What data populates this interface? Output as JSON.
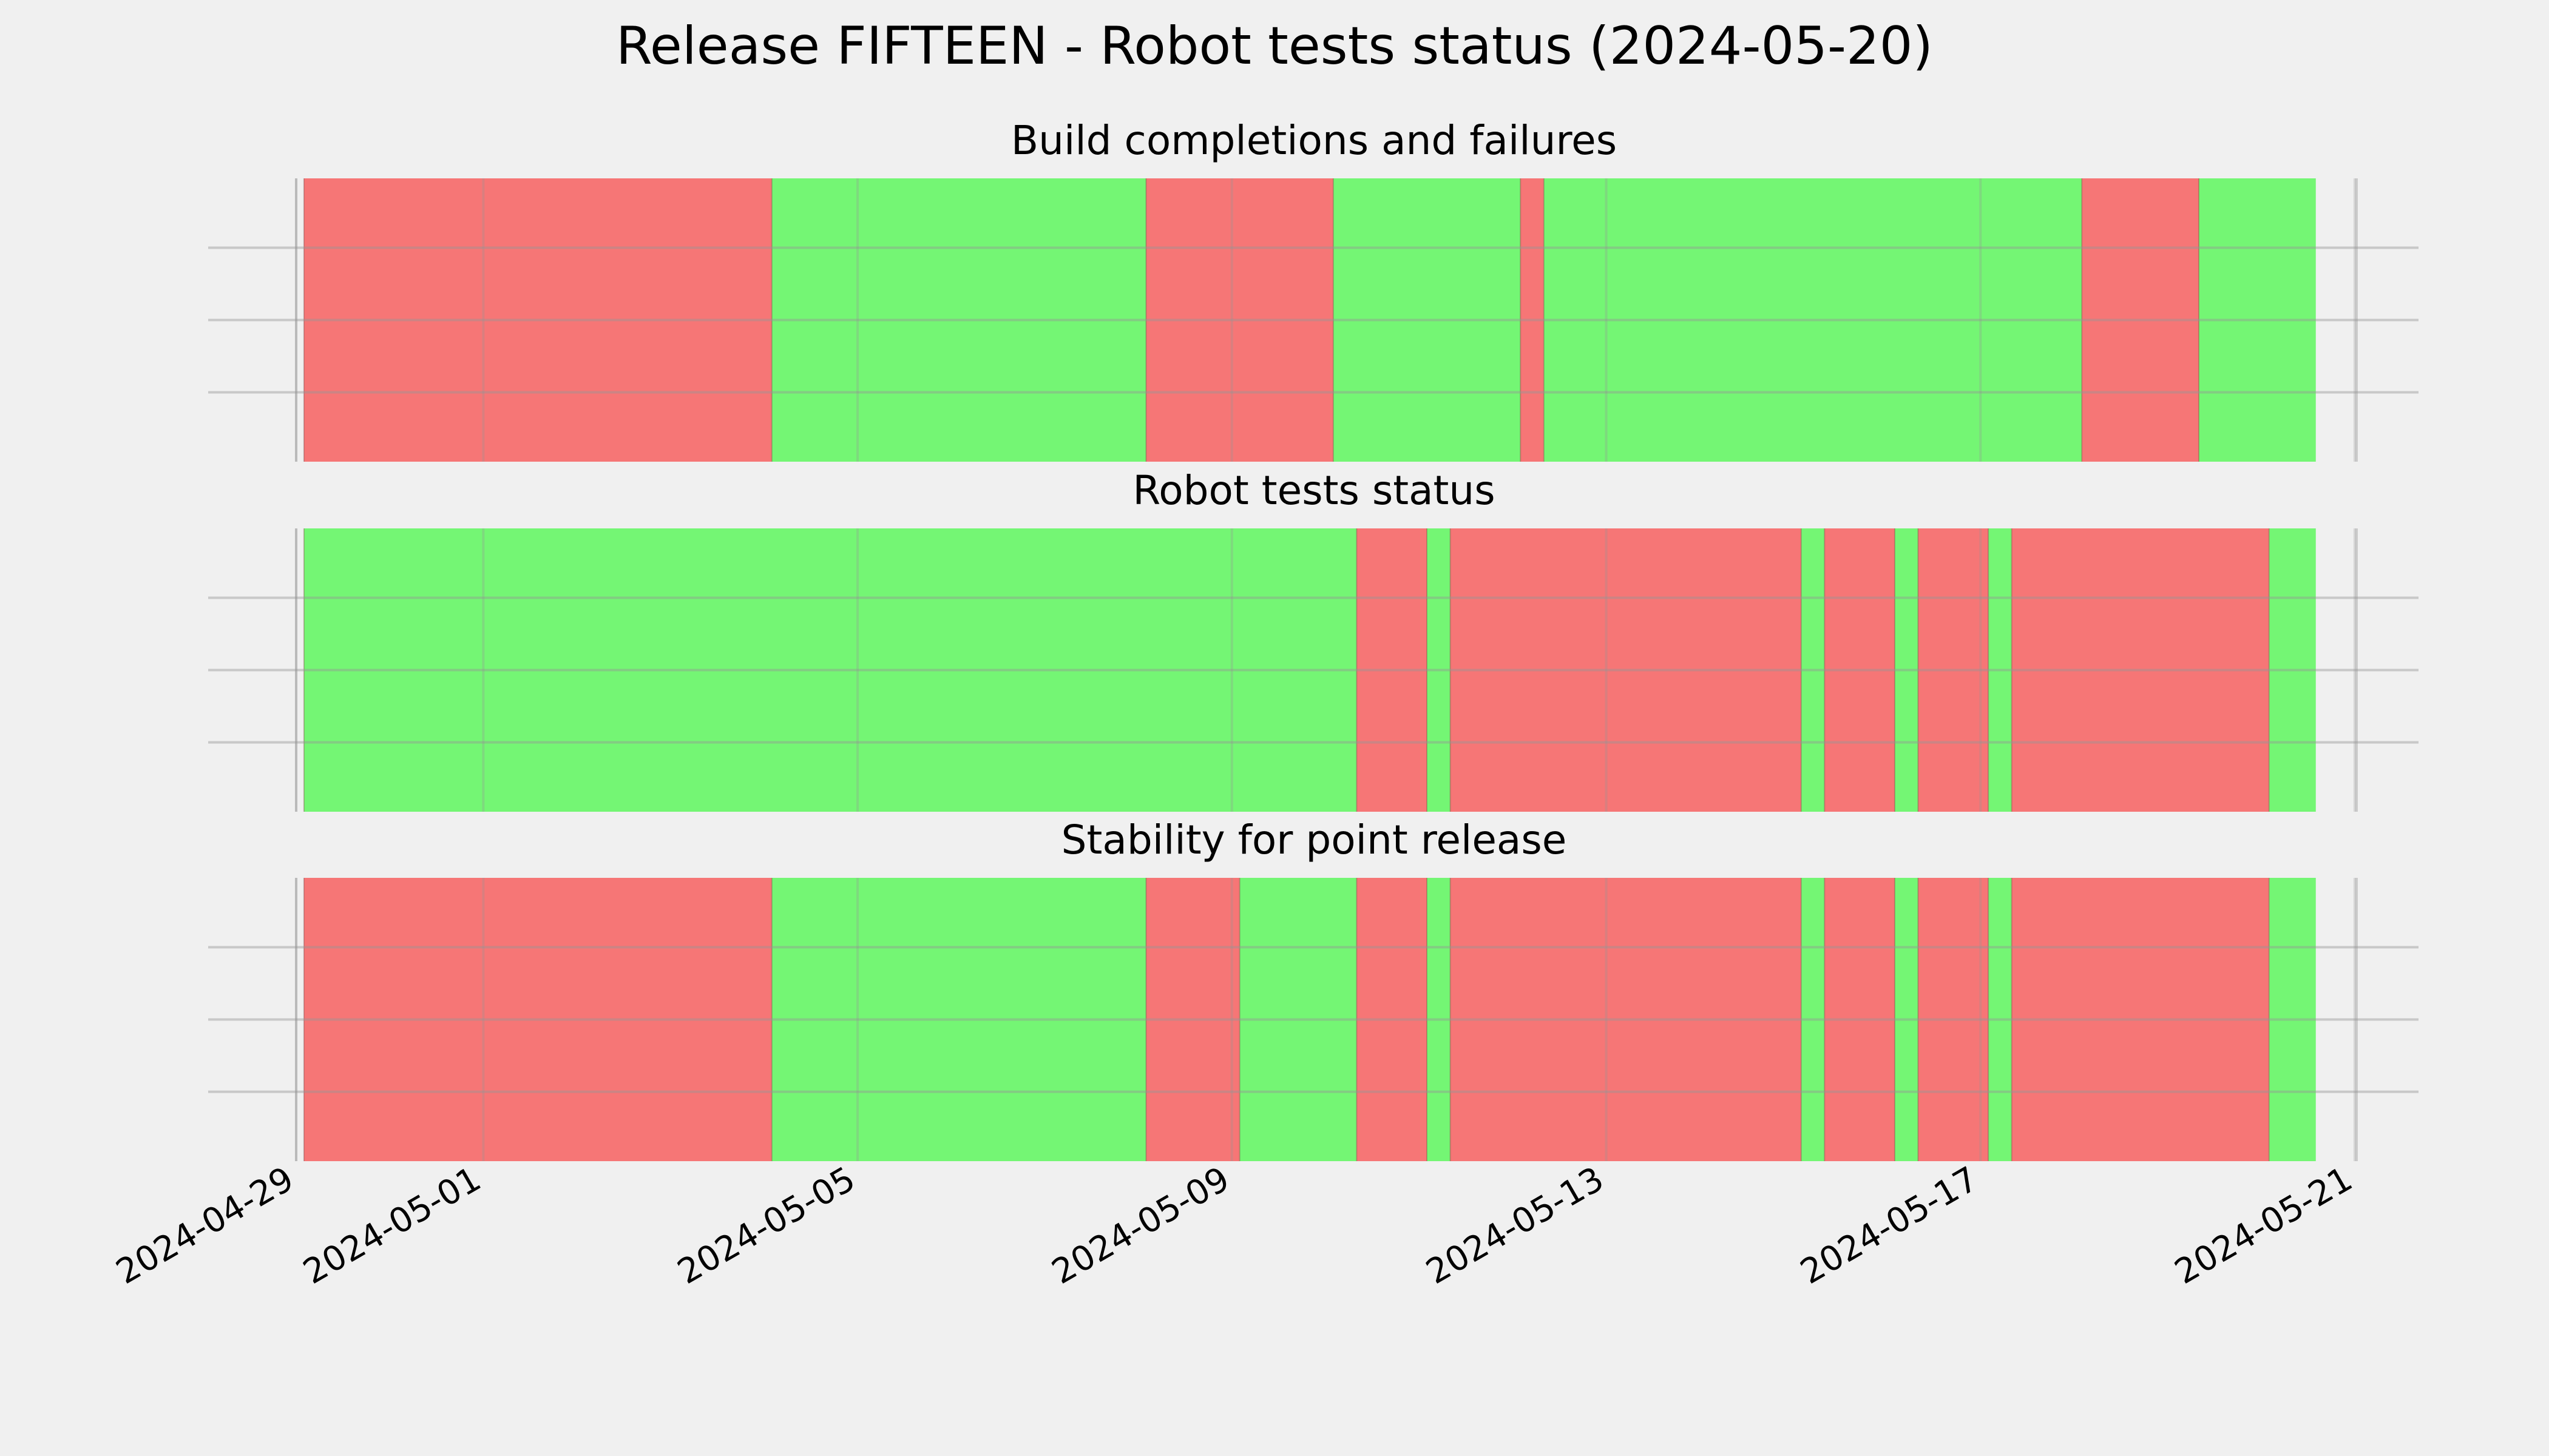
{
  "chart_data": {
    "type": "timeline",
    "title": "Release FIFTEEN - Robot tests status (2024-05-20)",
    "xlim": [
      "2024-04-29T00:00",
      "2024-05-21T00:00"
    ],
    "x_ticks": [
      "2024-04-29",
      "2024-05-01",
      "2024-05-05",
      "2024-05-09",
      "2024-05-13",
      "2024-05-17",
      "2024-05-21"
    ],
    "colors": {
      "pass": "#74f674",
      "fail": "#f67676",
      "background": "#f0f0f0",
      "grid": "#cbcbcb"
    },
    "panels": [
      {
        "title": "Build completions and failures",
        "segments": [
          {
            "start": "2024-04-29T02:00",
            "end": "2024-05-04T02:00",
            "status": "fail"
          },
          {
            "start": "2024-05-04T02:00",
            "end": "2024-05-08T02:00",
            "status": "pass"
          },
          {
            "start": "2024-05-08T02:00",
            "end": "2024-05-10T02:00",
            "status": "fail"
          },
          {
            "start": "2024-05-10T02:00",
            "end": "2024-05-12T02:00",
            "status": "pass"
          },
          {
            "start": "2024-05-12T02:00",
            "end": "2024-05-12T08:00",
            "status": "fail"
          },
          {
            "start": "2024-05-12T08:00",
            "end": "2024-05-18T02:00",
            "status": "pass"
          },
          {
            "start": "2024-05-18T02:00",
            "end": "2024-05-19T08:00",
            "status": "fail"
          },
          {
            "start": "2024-05-19T08:00",
            "end": "2024-05-20T14:00",
            "status": "pass"
          }
        ]
      },
      {
        "title": "Robot tests status",
        "segments": [
          {
            "start": "2024-04-29T02:00",
            "end": "2024-05-10T08:00",
            "status": "pass"
          },
          {
            "start": "2024-05-10T08:00",
            "end": "2024-05-11T02:00",
            "status": "fail"
          },
          {
            "start": "2024-05-11T02:00",
            "end": "2024-05-11T08:00",
            "status": "pass"
          },
          {
            "start": "2024-05-11T08:00",
            "end": "2024-05-15T02:00",
            "status": "fail"
          },
          {
            "start": "2024-05-15T02:00",
            "end": "2024-05-15T08:00",
            "status": "pass"
          },
          {
            "start": "2024-05-15T08:00",
            "end": "2024-05-16T02:00",
            "status": "fail"
          },
          {
            "start": "2024-05-16T02:00",
            "end": "2024-05-16T08:00",
            "status": "pass"
          },
          {
            "start": "2024-05-16T08:00",
            "end": "2024-05-17T02:00",
            "status": "fail"
          },
          {
            "start": "2024-05-17T02:00",
            "end": "2024-05-17T08:00",
            "status": "pass"
          },
          {
            "start": "2024-05-17T08:00",
            "end": "2024-05-20T02:00",
            "status": "fail"
          },
          {
            "start": "2024-05-20T02:00",
            "end": "2024-05-20T14:00",
            "status": "pass"
          }
        ]
      },
      {
        "title": "Stability for point release",
        "segments": [
          {
            "start": "2024-04-29T02:00",
            "end": "2024-05-04T02:00",
            "status": "fail"
          },
          {
            "start": "2024-05-04T02:00",
            "end": "2024-05-08T02:00",
            "status": "pass"
          },
          {
            "start": "2024-05-08T02:00",
            "end": "2024-05-09T02:00",
            "status": "fail"
          },
          {
            "start": "2024-05-09T02:00",
            "end": "2024-05-10T08:00",
            "status": "pass"
          },
          {
            "start": "2024-05-10T08:00",
            "end": "2024-05-11T02:00",
            "status": "fail"
          },
          {
            "start": "2024-05-11T02:00",
            "end": "2024-05-11T08:00",
            "status": "pass"
          },
          {
            "start": "2024-05-11T08:00",
            "end": "2024-05-15T02:00",
            "status": "fail"
          },
          {
            "start": "2024-05-15T02:00",
            "end": "2024-05-15T08:00",
            "status": "pass"
          },
          {
            "start": "2024-05-15T08:00",
            "end": "2024-05-16T02:00",
            "status": "fail"
          },
          {
            "start": "2024-05-16T02:00",
            "end": "2024-05-16T08:00",
            "status": "pass"
          },
          {
            "start": "2024-05-16T08:00",
            "end": "2024-05-17T02:00",
            "status": "fail"
          },
          {
            "start": "2024-05-17T02:00",
            "end": "2024-05-17T08:00",
            "status": "pass"
          },
          {
            "start": "2024-05-17T08:00",
            "end": "2024-05-20T02:00",
            "status": "fail"
          },
          {
            "start": "2024-05-20T02:00",
            "end": "2024-05-20T14:00",
            "status": "pass"
          }
        ]
      }
    ]
  }
}
